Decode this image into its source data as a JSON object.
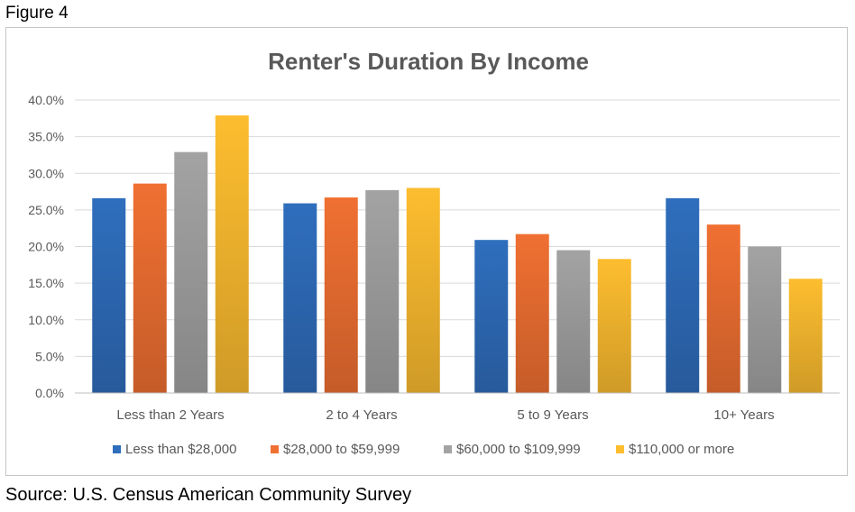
{
  "figure_label": "Figure 4",
  "source": "Source: U.S. Census  American Community Survey",
  "chart_data": {
    "type": "bar",
    "title": "Renter's Duration By Income",
    "xlabel": "",
    "ylabel": "",
    "categories": [
      "Less than 2 Years",
      "2 to 4 Years",
      "5 to 9 Years",
      "10+ Years"
    ],
    "series": [
      {
        "name": "Less than $28,000",
        "values": [
          26.6,
          25.9,
          20.9,
          26.6
        ],
        "color": "#2f6ebd"
      },
      {
        "name": "$28,000 to $59,999",
        "values": [
          28.6,
          26.7,
          21.7,
          23.0
        ],
        "color": "#f07032"
      },
      {
        "name": "$60,000 to $109,999",
        "values": [
          32.9,
          27.7,
          19.5,
          20.0
        ],
        "color": "#a3a3a3"
      },
      {
        "name": "$110,000 or more",
        "values": [
          37.9,
          28.0,
          18.3,
          15.6
        ],
        "color": "#fdbd2f"
      }
    ],
    "ylim": [
      0,
      40
    ],
    "yticks": [
      "0.0%",
      "5.0%",
      "10.0%",
      "15.0%",
      "20.0%",
      "25.0%",
      "30.0%",
      "35.0%",
      "40.0%"
    ],
    "grid": true,
    "legend_position": "bottom"
  }
}
